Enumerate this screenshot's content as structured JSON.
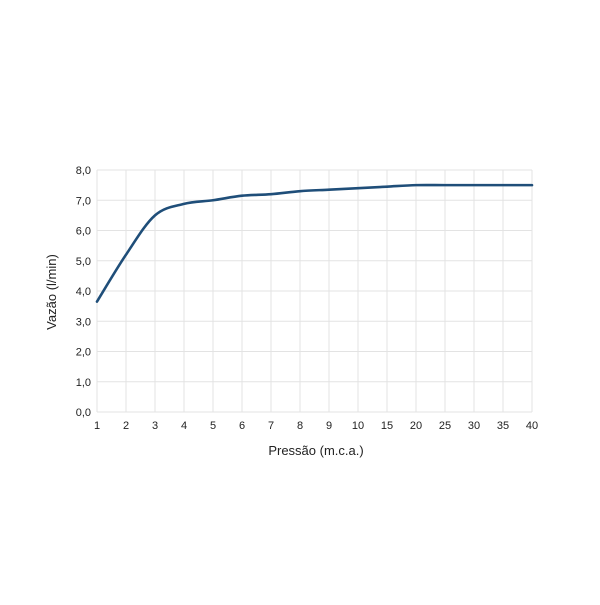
{
  "chart_data": {
    "type": "line",
    "xlabel": "Pressão (m.c.a.)",
    "ylabel": "Vazão (l/min)",
    "x_categories": [
      "1",
      "2",
      "3",
      "4",
      "5",
      "6",
      "7",
      "8",
      "9",
      "10",
      "15",
      "20",
      "25",
      "30",
      "35",
      "40"
    ],
    "y_ticks": [
      "0,0",
      "1,0",
      "2,0",
      "3,0",
      "4,0",
      "5,0",
      "6,0",
      "7,0",
      "8,0"
    ],
    "ylim": [
      0,
      8
    ],
    "grid": true,
    "series": [
      {
        "color": "#1f4e79",
        "values": [
          3.65,
          5.2,
          6.5,
          6.88,
          7.0,
          7.15,
          7.2,
          7.3,
          7.35,
          7.4,
          7.45,
          7.5,
          7.5,
          7.5,
          7.5,
          7.5
        ]
      }
    ]
  }
}
